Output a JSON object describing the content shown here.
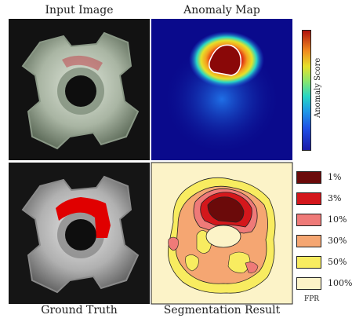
{
  "titles": {
    "input": "Input Image",
    "anomaly_map": "Anomaly Map",
    "ground_truth": "Ground Truth",
    "segmentation": "Segmentation Result"
  },
  "colorbar": {
    "label": "Anomaly Score"
  },
  "legend": {
    "items": [
      {
        "label": "1%",
        "color": "#6b0a0a"
      },
      {
        "label": "3%",
        "color": "#d4171c"
      },
      {
        "label": "10%",
        "color": "#ef7a78"
      },
      {
        "label": "30%",
        "color": "#f5a672"
      },
      {
        "label": "50%",
        "color": "#f8ec60"
      },
      {
        "label": "100%",
        "color": "#fcf3c8"
      }
    ],
    "footer": "FPR"
  },
  "colors": {
    "heatmap_bg": "#0a0a8c",
    "defect": "#e00000",
    "panel_dark": "#151515"
  }
}
